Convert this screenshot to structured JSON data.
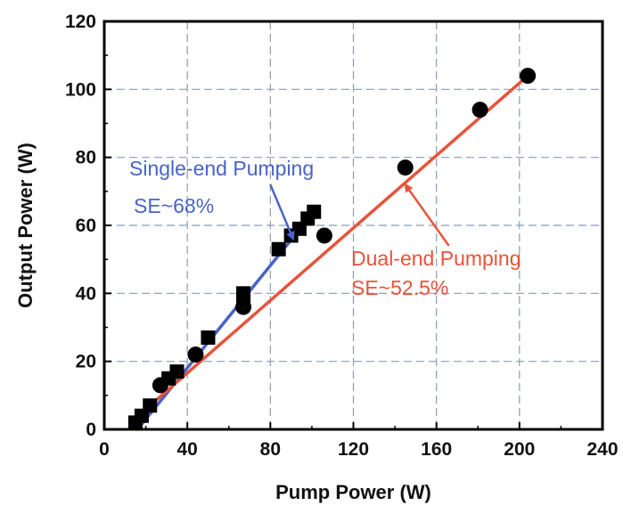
{
  "chart_data": {
    "type": "line",
    "xlabel": "Pump Power (W)",
    "ylabel": "Output Power (W)",
    "xlim": [
      0,
      240
    ],
    "ylim": [
      0,
      120
    ],
    "xticks": [
      "0",
      "40",
      "80",
      "120",
      "160",
      "200",
      "240"
    ],
    "yticks": [
      "0",
      "20",
      "40",
      "60",
      "80",
      "100",
      "120"
    ],
    "grid": true,
    "series": [
      {
        "marker": "square",
        "color": "#000000",
        "points": [
          [
            15,
            2
          ],
          [
            18,
            4
          ],
          [
            22,
            7
          ],
          [
            31,
            15
          ],
          [
            35,
            17
          ],
          [
            50,
            27
          ],
          [
            67,
            38
          ],
          [
            67,
            40
          ],
          [
            84,
            53
          ],
          [
            90,
            57
          ],
          [
            94,
            59
          ],
          [
            98,
            62
          ],
          [
            101,
            64
          ]
        ]
      },
      {
        "marker": "circle",
        "color": "#000000",
        "points": [
          [
            27,
            13
          ],
          [
            44,
            22
          ],
          [
            67,
            36
          ],
          [
            106,
            57
          ],
          [
            145,
            77
          ],
          [
            181,
            94
          ],
          [
            204,
            104
          ]
        ]
      }
    ],
    "fit_lines": [
      {
        "label": "Single-end Pumping",
        "color": "#4a63c8",
        "x": [
          16,
          101
        ],
        "y": [
          0,
          64
        ]
      },
      {
        "label": "Dual-end Pumping",
        "color": "#e8533a",
        "x": [
          22,
          204
        ],
        "y": [
          7,
          104
        ]
      }
    ],
    "annotations": [
      {
        "lines": [
          "Single-end Pumping",
          "SE~68%"
        ],
        "color": "#4a63c8",
        "arrow_from": [
          80,
          72
        ],
        "arrow_to": [
          91,
          56
        ]
      },
      {
        "lines": [
          "Dual-end Pumping",
          "SE~52.5%"
        ],
        "color": "#e8533a",
        "arrow_from": [
          166,
          54
        ],
        "arrow_to": [
          145,
          72
        ]
      }
    ]
  }
}
